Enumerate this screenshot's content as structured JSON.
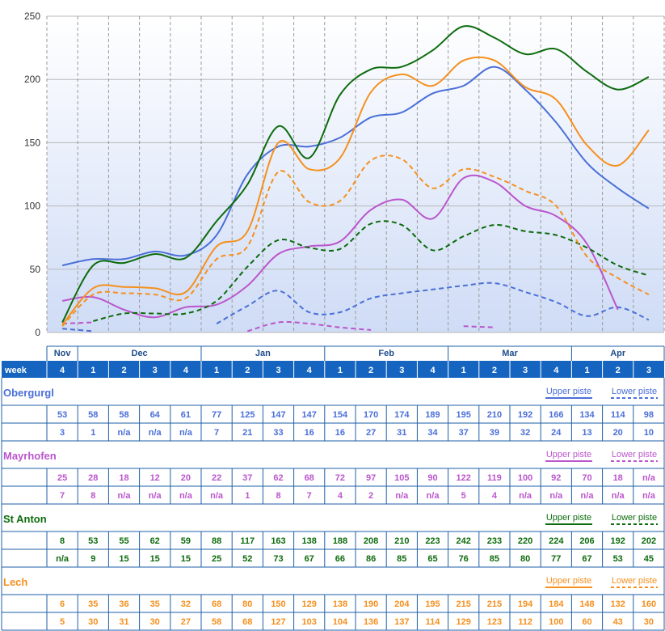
{
  "chart_data": {
    "type": "line",
    "ylim": [
      0,
      250
    ],
    "yticks": [
      0,
      50,
      100,
      150,
      200,
      250
    ],
    "grid": true,
    "month_labels": [
      "Nov",
      "Dec",
      "Jan",
      "Feb",
      "Mar",
      "Apr"
    ],
    "week_header": "week",
    "weeks": [
      "4",
      "1",
      "2",
      "3",
      "4",
      "1",
      "2",
      "3",
      "4",
      "1",
      "2",
      "3",
      "4",
      "1",
      "2",
      "3",
      "4",
      "1",
      "2",
      "3"
    ],
    "month_spans": [
      1,
      4,
      4,
      4,
      4,
      3
    ],
    "upper_label": "Upper piste",
    "lower_label": "Lower piste",
    "resorts": [
      {
        "name": "Obergurgl",
        "color": "#4a6fd8",
        "upper": [
          "53",
          "58",
          "58",
          "64",
          "61",
          "77",
          "125",
          "147",
          "147",
          "154",
          "170",
          "174",
          "189",
          "195",
          "210",
          "192",
          "166",
          "134",
          "114",
          "98"
        ],
        "lower": [
          "3",
          "1",
          "n/a",
          "n/a",
          "n/a",
          "7",
          "21",
          "33",
          "16",
          "16",
          "27",
          "31",
          "34",
          "37",
          "39",
          "32",
          "24",
          "13",
          "20",
          "10"
        ]
      },
      {
        "name": "Mayrhofen",
        "color": "#bb55cc",
        "upper": [
          "25",
          "28",
          "18",
          "12",
          "20",
          "22",
          "37",
          "62",
          "68",
          "72",
          "97",
          "105",
          "90",
          "122",
          "119",
          "100",
          "92",
          "70",
          "18",
          "n/a"
        ],
        "lower": [
          "7",
          "8",
          "n/a",
          "n/a",
          "n/a",
          "n/a",
          "1",
          "8",
          "7",
          "4",
          "2",
          "n/a",
          "n/a",
          "5",
          "4",
          "n/a",
          "n/a",
          "n/a",
          "n/a",
          "n/a"
        ]
      },
      {
        "name": "St Anton",
        "color": "#0d6b0d",
        "upper": [
          "8",
          "53",
          "55",
          "62",
          "59",
          "88",
          "117",
          "163",
          "138",
          "188",
          "208",
          "210",
          "223",
          "242",
          "233",
          "220",
          "224",
          "206",
          "192",
          "202"
        ],
        "lower": [
          "n/a",
          "9",
          "15",
          "15",
          "15",
          "25",
          "52",
          "73",
          "67",
          "66",
          "86",
          "85",
          "65",
          "76",
          "85",
          "80",
          "77",
          "67",
          "53",
          "45"
        ]
      },
      {
        "name": "Lech",
        "color": "#f5901e",
        "upper": [
          "6",
          "35",
          "36",
          "35",
          "32",
          "68",
          "80",
          "150",
          "129",
          "138",
          "190",
          "204",
          "195",
          "215",
          "215",
          "194",
          "184",
          "148",
          "132",
          "160"
        ],
        "lower": [
          "5",
          "30",
          "31",
          "30",
          "27",
          "58",
          "68",
          "127",
          "103",
          "104",
          "136",
          "137",
          "114",
          "129",
          "123",
          "112",
          "100",
          "60",
          "43",
          "30"
        ]
      }
    ]
  }
}
